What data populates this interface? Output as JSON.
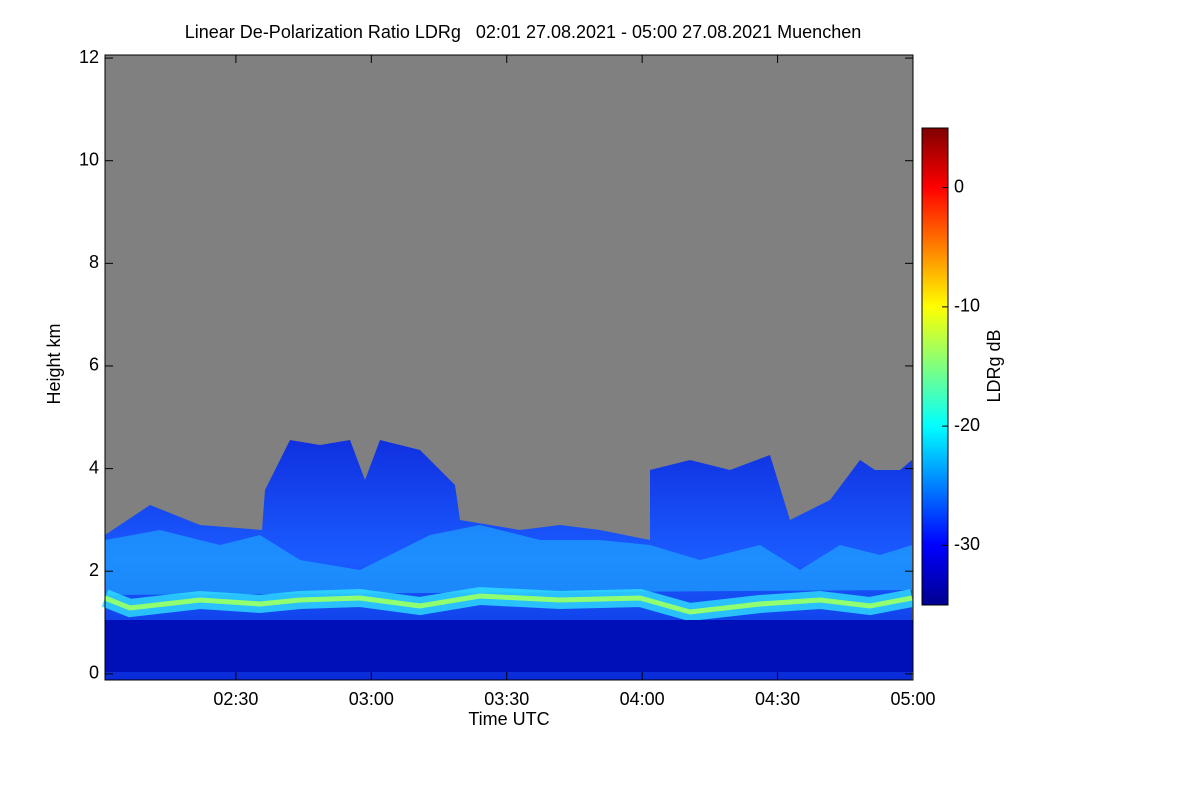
{
  "chart_data": {
    "type": "heatmap",
    "title": "Linear De-Polarization Ratio LDRg   02:01 27.08.2021 - 05:00 27.08.2021 Muenchen",
    "x_label": "Time UTC",
    "y_label": "Height km",
    "xlim": [
      121,
      300
    ],
    "xticks": [
      {
        "value": 150,
        "label": "02:30"
      },
      {
        "value": 180,
        "label": "03:00"
      },
      {
        "value": 210,
        "label": "03:30"
      },
      {
        "value": 240,
        "label": "04:00"
      },
      {
        "value": 270,
        "label": "04:30"
      },
      {
        "value": 300,
        "label": "05:00"
      }
    ],
    "ylim": [
      -0.12,
      12.06
    ],
    "yticks": [
      0,
      2,
      4,
      6,
      8,
      10,
      12
    ],
    "colorbar": {
      "label": "LDRg dB",
      "clim": [
        -35,
        5
      ],
      "ticks": [
        0,
        -10,
        -20,
        -30
      ],
      "colormap": "jet"
    }
  }
}
